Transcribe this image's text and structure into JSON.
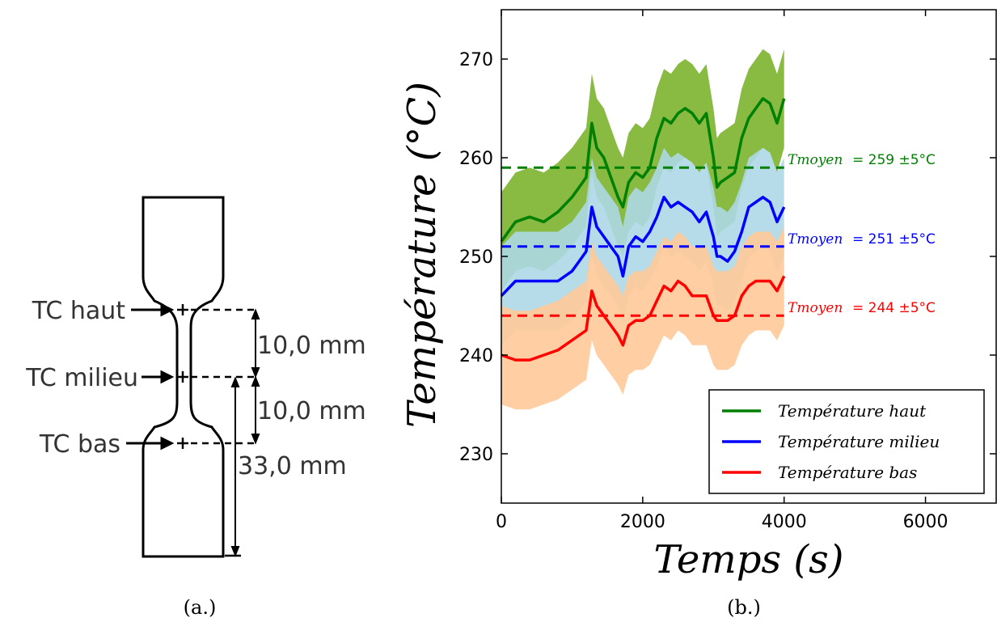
{
  "diagram": {
    "tc_labels": [
      "TC haut",
      "TC milieu",
      "TC bas"
    ],
    "dimensions": [
      "10,0 mm",
      "10,0 mm",
      "33,0 mm"
    ],
    "caption": "(a.)"
  },
  "chart_caption": "(b.)",
  "chart_data": {
    "type": "line",
    "xlabel": "Temps (s)",
    "ylabel": "Température (°C)",
    "xlim": [
      0,
      7000
    ],
    "ylim": [
      225,
      275
    ],
    "x_ticks": [
      "0",
      "2000",
      "4000",
      "6000"
    ],
    "y_ticks": [
      "230",
      "240",
      "250",
      "260",
      "270"
    ],
    "x_tick_values": [
      0,
      2000,
      4000,
      6000
    ],
    "y_tick_values": [
      230,
      240,
      250,
      260,
      270
    ],
    "legend_position": "lower-right",
    "grid": false,
    "band_halfwidth": 5,
    "x": [
      0,
      200,
      400,
      600,
      800,
      1000,
      1100,
      1200,
      1280,
      1350,
      1450,
      1550,
      1650,
      1720,
      1800,
      1900,
      2000,
      2100,
      2200,
      2300,
      2400,
      2500,
      2600,
      2700,
      2800,
      2900,
      3000,
      3050,
      3100,
      3200,
      3300,
      3400,
      3500,
      3600,
      3700,
      3800,
      3900,
      4000
    ],
    "series": [
      {
        "name": "Température haut",
        "color": "#008000",
        "band_color": "#7cb32e",
        "mean_label_prefix": "Tmoyen",
        "mean_label_value": " = 259 ±5°C",
        "mean": 259,
        "values": [
          251.5,
          253.5,
          254,
          253.5,
          254.5,
          256,
          257,
          258,
          263.5,
          261,
          260,
          258,
          256,
          255,
          257.5,
          258.5,
          258,
          259,
          262,
          264,
          263.5,
          264.5,
          265,
          264.5,
          263.5,
          264.5,
          260,
          257,
          257.5,
          258,
          258.5,
          262,
          264,
          265,
          266,
          265.5,
          263.5,
          266
        ]
      },
      {
        "name": "Température milieu",
        "color": "#0000ff",
        "band_color": "#add8e6",
        "mean_label_prefix": "Tmoyen",
        "mean_label_value": " = 251 ±5°C",
        "mean": 251,
        "values": [
          246,
          247.5,
          247.5,
          247.5,
          247.5,
          248.5,
          249.5,
          250.5,
          255,
          253,
          252,
          251,
          250,
          248,
          251,
          252,
          251.5,
          252.5,
          254,
          256,
          255,
          255.5,
          255,
          254.5,
          253.5,
          254.5,
          252,
          250,
          250,
          249.5,
          250.5,
          252.5,
          255,
          255.5,
          256,
          255.5,
          253.5,
          255
        ]
      },
      {
        "name": "Température bas",
        "color": "#ff0000",
        "band_color": "#ffc999",
        "mean_label_prefix": "Tmoyen",
        "mean_label_value": " = 244 ±5°C",
        "mean": 244,
        "values": [
          240,
          239.5,
          239.5,
          240,
          240.5,
          241.5,
          242,
          242.5,
          246.5,
          245,
          244,
          243,
          242,
          241,
          243,
          243.5,
          243.5,
          244,
          245.5,
          247,
          246.5,
          247.5,
          247,
          246,
          246,
          246,
          244,
          243.5,
          243.5,
          243.5,
          244,
          246,
          247,
          247.5,
          247.5,
          247.5,
          246.5,
          248
        ]
      }
    ]
  }
}
